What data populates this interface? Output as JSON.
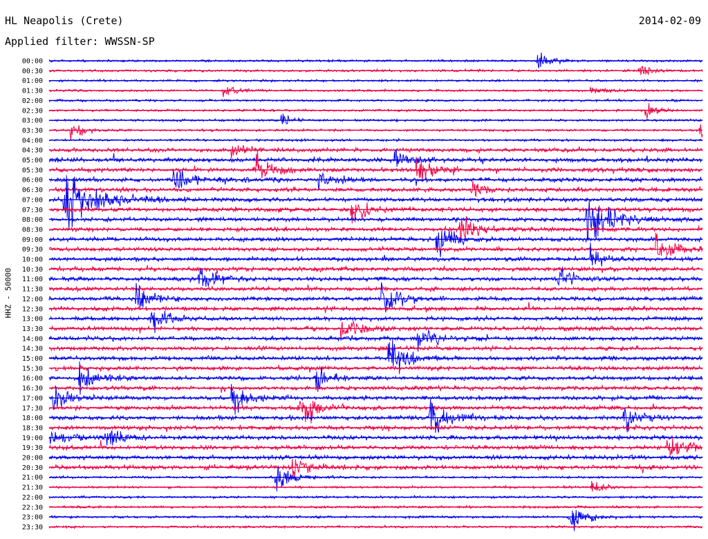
{
  "header": {
    "station": "HL Neapolis (Crete)",
    "date": "2014-02-09",
    "filter": "Applied filter: WWSSN-SP"
  },
  "chart_data": {
    "type": "line",
    "title": "HL Neapolis (Crete)",
    "subtitle": "Applied filter: WWSSN-SP",
    "ylabel": "HHZ - 50000",
    "xlabel": "",
    "trace_labels": [
      "00:00",
      "00:30",
      "01:00",
      "01:30",
      "02:00",
      "02:30",
      "03:00",
      "03:30",
      "04:00",
      "04:30",
      "05:00",
      "05:30",
      "06:00",
      "06:30",
      "07:00",
      "07:30",
      "08:00",
      "08:30",
      "09:00",
      "09:30",
      "10:00",
      "10:30",
      "11:00",
      "11:30",
      "12:00",
      "12:30",
      "13:00",
      "13:30",
      "14:00",
      "14:30",
      "15:00",
      "15:30",
      "16:00",
      "16:30",
      "17:00",
      "17:30",
      "18:00",
      "18:30",
      "19:00",
      "19:30",
      "20:00",
      "20:30",
      "21:00",
      "21:30",
      "22:00",
      "22:30",
      "23:00",
      "23:30"
    ],
    "trace_minutes": 30,
    "colors": [
      "#0000ee",
      "#ee0044"
    ],
    "events": [
      {
        "trace": "00:00",
        "minute": 22.5,
        "amplitude": 10
      },
      {
        "trace": "00:30",
        "minute": 27.2,
        "amplitude": 6
      },
      {
        "trace": "01:30",
        "minute": 8.1,
        "amplitude": 7
      },
      {
        "trace": "01:30",
        "minute": 25.0,
        "amplitude": 6
      },
      {
        "trace": "02:30",
        "minute": 27.5,
        "amplitude": 8
      },
      {
        "trace": "03:00",
        "minute": 10.8,
        "amplitude": 6
      },
      {
        "trace": "03:30",
        "minute": 1.1,
        "amplitude": 10
      },
      {
        "trace": "03:30",
        "minute": 30.0,
        "amplitude": 12
      },
      {
        "trace": "04:30",
        "minute": 8.5,
        "amplitude": 8
      },
      {
        "trace": "05:00",
        "minute": 16.0,
        "amplitude": 12
      },
      {
        "trace": "05:30",
        "minute": 9.5,
        "amplitude": 18
      },
      {
        "trace": "05:30",
        "minute": 17.0,
        "amplitude": 14
      },
      {
        "trace": "06:00",
        "minute": 5.8,
        "amplitude": 18
      },
      {
        "trace": "06:00",
        "minute": 12.5,
        "amplitude": 12
      },
      {
        "trace": "06:30",
        "minute": 19.5,
        "amplitude": 12
      },
      {
        "trace": "07:00",
        "minute": 0.8,
        "amplitude": 40
      },
      {
        "trace": "07:30",
        "minute": 14.0,
        "amplitude": 14
      },
      {
        "trace": "08:00",
        "minute": 24.8,
        "amplitude": 28
      },
      {
        "trace": "08:30",
        "minute": 19.0,
        "amplitude": 14
      },
      {
        "trace": "09:00",
        "minute": 17.9,
        "amplitude": 16
      },
      {
        "trace": "09:30",
        "minute": 28.0,
        "amplitude": 16
      },
      {
        "trace": "10:00",
        "minute": 25.0,
        "amplitude": 12
      },
      {
        "trace": "11:00",
        "minute": 7.0,
        "amplitude": 14
      },
      {
        "trace": "11:00",
        "minute": 23.5,
        "amplitude": 12
      },
      {
        "trace": "12:00",
        "minute": 4.1,
        "amplitude": 16
      },
      {
        "trace": "12:00",
        "minute": 15.4,
        "amplitude": 18
      },
      {
        "trace": "13:00",
        "minute": 4.8,
        "amplitude": 14
      },
      {
        "trace": "13:30",
        "minute": 13.5,
        "amplitude": 16
      },
      {
        "trace": "14:00",
        "minute": 17.0,
        "amplitude": 14
      },
      {
        "trace": "15:00",
        "minute": 15.7,
        "amplitude": 18
      },
      {
        "trace": "16:00",
        "minute": 1.5,
        "amplitude": 16
      },
      {
        "trace": "16:00",
        "minute": 12.3,
        "amplitude": 14
      },
      {
        "trace": "17:00",
        "minute": 0.3,
        "amplitude": 14
      },
      {
        "trace": "17:00",
        "minute": 8.5,
        "amplitude": 16
      },
      {
        "trace": "17:30",
        "minute": 11.5,
        "amplitude": 20
      },
      {
        "trace": "18:00",
        "minute": 17.6,
        "amplitude": 20
      },
      {
        "trace": "18:00",
        "minute": 26.5,
        "amplitude": 14
      },
      {
        "trace": "19:00",
        "minute": 0.2,
        "amplitude": 12
      },
      {
        "trace": "19:00",
        "minute": 2.7,
        "amplitude": 12
      },
      {
        "trace": "19:30",
        "minute": 28.5,
        "amplitude": 16
      },
      {
        "trace": "20:30",
        "minute": 11.3,
        "amplitude": 14
      },
      {
        "trace": "21:00",
        "minute": 10.5,
        "amplitude": 16
      },
      {
        "trace": "21:30",
        "minute": 25.0,
        "amplitude": 8
      },
      {
        "trace": "23:00",
        "minute": 24.0,
        "amplitude": 16
      }
    ]
  }
}
